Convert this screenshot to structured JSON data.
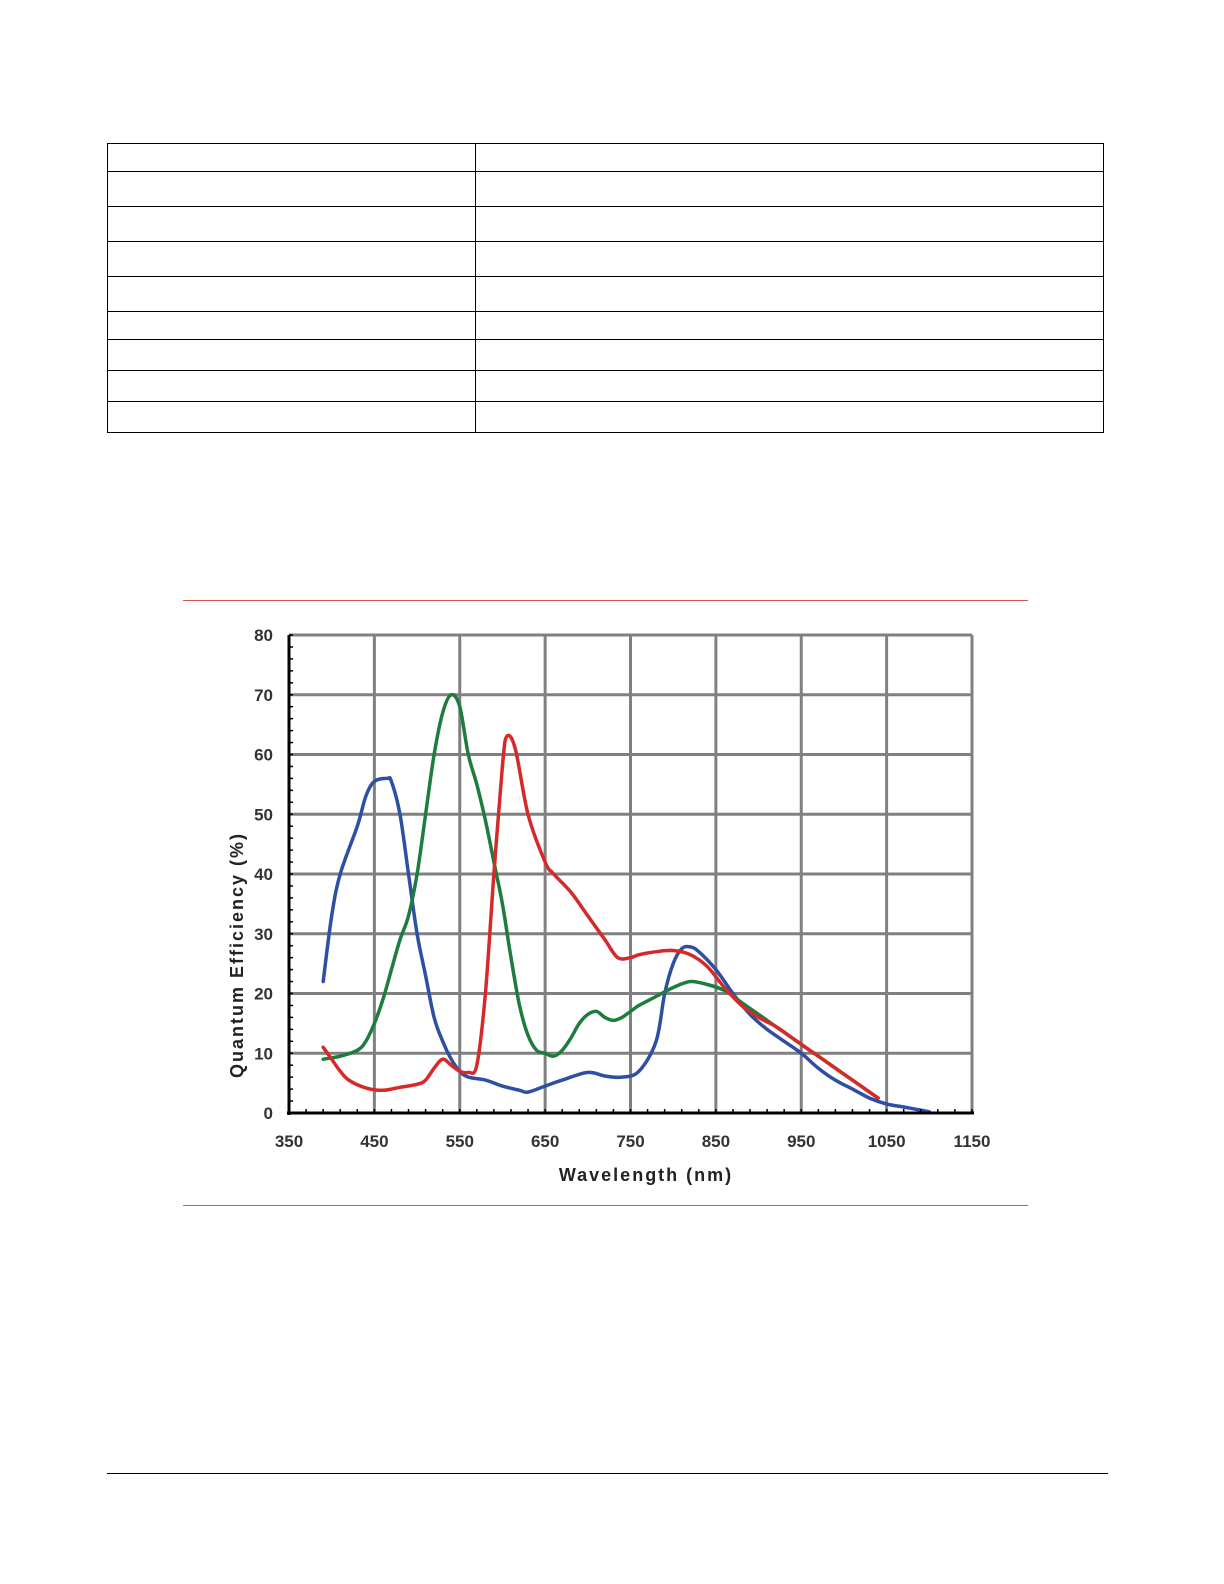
{
  "spec_table": {
    "rows": [
      [
        "",
        ""
      ],
      [
        "",
        ""
      ],
      [
        "",
        ""
      ],
      [
        "",
        ""
      ],
      [
        "",
        ""
      ],
      [
        "",
        ""
      ],
      [
        "",
        ""
      ],
      [
        "",
        ""
      ],
      [
        "",
        ""
      ],
      [
        "",
        ""
      ]
    ]
  },
  "chart_data": {
    "type": "line",
    "title": "",
    "xlabel": "Wavelength (nm)",
    "ylabel": "Quantum Efficiency (%)",
    "xlim": [
      350,
      1150
    ],
    "ylim": [
      0,
      80
    ],
    "xticks": [
      350,
      450,
      550,
      650,
      750,
      850,
      950,
      1050,
      1150
    ],
    "yticks": [
      0,
      10,
      20,
      30,
      40,
      50,
      60,
      70,
      80
    ],
    "grid": true,
    "legend": "none",
    "series": [
      {
        "color": "#2e4fa3",
        "points": [
          [
            390,
            22
          ],
          [
            400,
            33
          ],
          [
            410,
            40
          ],
          [
            430,
            48
          ],
          [
            440,
            53
          ],
          [
            450,
            55.5
          ],
          [
            465,
            56
          ],
          [
            470,
            55.5
          ],
          [
            480,
            50
          ],
          [
            490,
            40
          ],
          [
            500,
            30
          ],
          [
            510,
            23
          ],
          [
            520,
            16
          ],
          [
            530,
            12
          ],
          [
            540,
            9
          ],
          [
            550,
            7
          ],
          [
            560,
            6
          ],
          [
            580,
            5.5
          ],
          [
            600,
            4.5
          ],
          [
            620,
            3.8
          ],
          [
            630,
            3.5
          ],
          [
            650,
            4.5
          ],
          [
            670,
            5.5
          ],
          [
            700,
            6.8
          ],
          [
            720,
            6.2
          ],
          [
            740,
            6
          ],
          [
            760,
            7
          ],
          [
            780,
            12
          ],
          [
            790,
            20
          ],
          [
            800,
            25
          ],
          [
            810,
            27.5
          ],
          [
            820,
            27.8
          ],
          [
            830,
            27
          ],
          [
            850,
            24
          ],
          [
            870,
            20
          ],
          [
            890,
            16.5
          ],
          [
            910,
            14
          ],
          [
            930,
            12
          ],
          [
            950,
            10
          ],
          [
            970,
            7.5
          ],
          [
            990,
            5.5
          ],
          [
            1010,
            4
          ],
          [
            1030,
            2.5
          ],
          [
            1050,
            1.5
          ],
          [
            1070,
            1
          ],
          [
            1085,
            0.6
          ],
          [
            1100,
            0.2
          ]
        ]
      },
      {
        "color": "#1e7d3e",
        "points": [
          [
            390,
            9
          ],
          [
            410,
            9.5
          ],
          [
            430,
            10.5
          ],
          [
            440,
            12
          ],
          [
            450,
            15
          ],
          [
            460,
            19
          ],
          [
            470,
            24
          ],
          [
            480,
            29
          ],
          [
            490,
            33
          ],
          [
            500,
            40
          ],
          [
            510,
            50
          ],
          [
            520,
            60
          ],
          [
            530,
            67
          ],
          [
            540,
            70
          ],
          [
            550,
            68
          ],
          [
            560,
            60
          ],
          [
            570,
            55
          ],
          [
            580,
            49
          ],
          [
            590,
            42
          ],
          [
            600,
            35
          ],
          [
            610,
            26
          ],
          [
            620,
            18
          ],
          [
            630,
            13
          ],
          [
            640,
            10.5
          ],
          [
            650,
            10
          ],
          [
            660,
            9.5
          ],
          [
            670,
            10.5
          ],
          [
            680,
            12.5
          ],
          [
            690,
            15
          ],
          [
            700,
            16.5
          ],
          [
            710,
            17
          ],
          [
            720,
            16
          ],
          [
            730,
            15.5
          ],
          [
            740,
            16
          ],
          [
            750,
            17
          ],
          [
            760,
            18
          ],
          [
            780,
            19.5
          ],
          [
            800,
            21
          ],
          [
            820,
            22
          ],
          [
            840,
            21.5
          ],
          [
            860,
            20.5
          ],
          [
            880,
            18.5
          ],
          [
            900,
            16.5
          ],
          [
            920,
            14.5
          ],
          [
            940,
            12.5
          ],
          [
            960,
            10.5
          ],
          [
            980,
            8.5
          ],
          [
            1000,
            6.5
          ],
          [
            1020,
            4.5
          ],
          [
            1040,
            2.5
          ]
        ]
      },
      {
        "color": "#d42a2a",
        "points": [
          [
            390,
            11
          ],
          [
            400,
            9
          ],
          [
            410,
            7
          ],
          [
            420,
            5.5
          ],
          [
            440,
            4.2
          ],
          [
            460,
            3.8
          ],
          [
            480,
            4.3
          ],
          [
            500,
            4.8
          ],
          [
            510,
            5.5
          ],
          [
            520,
            7.5
          ],
          [
            530,
            9
          ],
          [
            540,
            8
          ],
          [
            550,
            7
          ],
          [
            560,
            6.8
          ],
          [
            570,
            8
          ],
          [
            580,
            20
          ],
          [
            590,
            40
          ],
          [
            600,
            58
          ],
          [
            605,
            63
          ],
          [
            615,
            61
          ],
          [
            630,
            50
          ],
          [
            650,
            42
          ],
          [
            660,
            40
          ],
          [
            680,
            37
          ],
          [
            700,
            33
          ],
          [
            720,
            29
          ],
          [
            735,
            26
          ],
          [
            750,
            26
          ],
          [
            760,
            26.5
          ],
          [
            780,
            27
          ],
          [
            800,
            27.2
          ],
          [
            820,
            26.5
          ],
          [
            840,
            24.5
          ],
          [
            860,
            21
          ],
          [
            880,
            18
          ],
          [
            900,
            16
          ],
          [
            920,
            14.5
          ],
          [
            940,
            12.5
          ],
          [
            960,
            10.5
          ],
          [
            980,
            8.5
          ],
          [
            1000,
            6.5
          ],
          [
            1020,
            4.5
          ],
          [
            1040,
            2.5
          ]
        ]
      }
    ]
  }
}
